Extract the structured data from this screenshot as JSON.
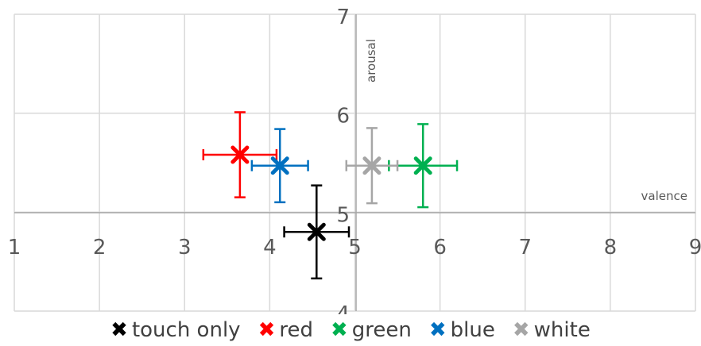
{
  "chart_data": {
    "type": "scatter",
    "xlabel": "valence",
    "ylabel": "arousal",
    "xlim": [
      1,
      9
    ],
    "ylim": [
      4,
      7
    ],
    "x_ticks": [
      "1",
      "2",
      "3",
      "4",
      "5",
      "6",
      "7",
      "8",
      "9"
    ],
    "y_ticks": [
      "4",
      "5",
      "6",
      "7"
    ],
    "grid": true,
    "legend_position": "bottom",
    "series": [
      {
        "name": "touch only",
        "color": "#000000",
        "x": 4.55,
        "y": 4.8,
        "x_err": 0.38,
        "y_err": 0.47
      },
      {
        "name": "red",
        "color": "#ff0000",
        "x": 3.65,
        "y": 5.58,
        "x_err": 0.43,
        "y_err": 0.43
      },
      {
        "name": "green",
        "color": "#00b050",
        "x": 5.8,
        "y": 5.47,
        "x_err": 0.4,
        "y_err": 0.42
      },
      {
        "name": "blue",
        "color": "#0070c0",
        "x": 4.12,
        "y": 5.47,
        "x_err": 0.33,
        "y_err": 0.37
      },
      {
        "name": "white",
        "color": "#a6a6a6",
        "x": 5.2,
        "y": 5.47,
        "x_err": 0.3,
        "y_err": 0.38
      }
    ]
  }
}
